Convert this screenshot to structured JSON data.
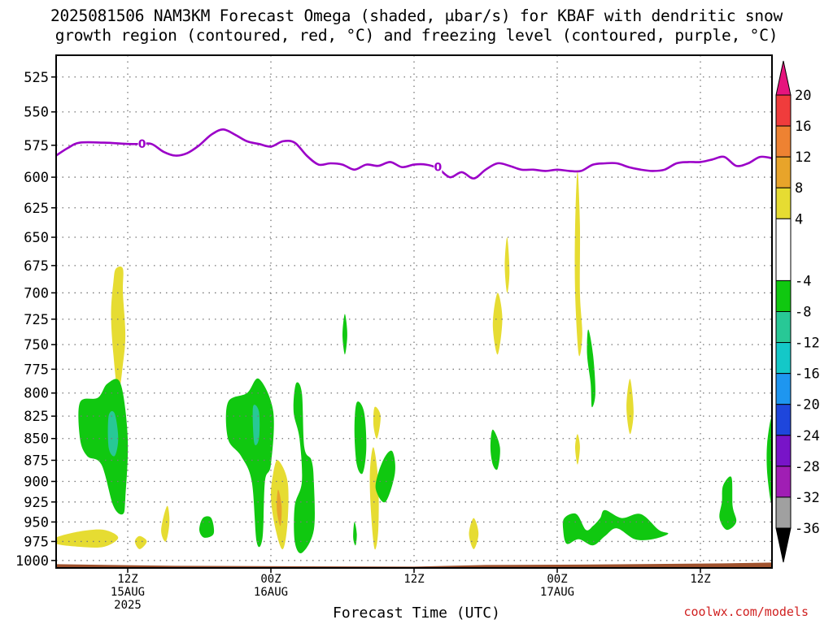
{
  "title_line1": "2025081506 NAM3KM Forecast Omega (shaded, μbar/s) for KBAF with dendritic snow",
  "title_line2": "growth region (contoured, red, °C) and freezing level (contoured, purple, °C)",
  "xlabel": "Forecast Time (UTC)",
  "credit": "coolwx.com/models",
  "colors": {
    "freezing_line": "#9b00c8",
    "terrain": "#a0522d",
    "grid": "#777777"
  },
  "chart_data": {
    "type": "heatmap",
    "y_axis": {
      "label": "",
      "ticks": [
        525,
        550,
        575,
        600,
        625,
        650,
        675,
        700,
        725,
        750,
        775,
        800,
        825,
        850,
        875,
        900,
        925,
        950,
        975,
        1000
      ],
      "range": [
        510,
        1010
      ],
      "scale": "log-pressure"
    },
    "x_axis": {
      "range_hours": [
        6,
        66
      ],
      "ticks": [
        {
          "hour": 12,
          "lines": [
            "12Z",
            "15AUG",
            "2025"
          ]
        },
        {
          "hour": 24,
          "lines": [
            "00Z",
            "16AUG"
          ]
        },
        {
          "hour": 36,
          "lines": [
            "12Z"
          ]
        },
        {
          "hour": 48,
          "lines": [
            "00Z",
            "17AUG"
          ]
        },
        {
          "hour": 60,
          "lines": [
            "12Z"
          ]
        }
      ]
    },
    "freezing_level": {
      "contour_label": "0",
      "label_positions": [
        [
          13.2,
          574
        ],
        [
          38.0,
          592
        ]
      ],
      "points": [
        [
          6,
          583
        ],
        [
          7,
          577
        ],
        [
          8,
          573
        ],
        [
          10,
          573
        ],
        [
          12,
          574
        ],
        [
          13,
          574
        ],
        [
          14,
          574
        ],
        [
          15,
          580
        ],
        [
          16,
          583
        ],
        [
          17,
          581
        ],
        [
          18,
          575
        ],
        [
          19,
          567
        ],
        [
          20,
          563
        ],
        [
          21,
          567
        ],
        [
          22,
          572
        ],
        [
          23,
          574
        ],
        [
          24,
          576
        ],
        [
          25,
          572
        ],
        [
          26,
          573
        ],
        [
          27,
          583
        ],
        [
          28,
          590
        ],
        [
          29,
          589
        ],
        [
          30,
          590
        ],
        [
          31,
          594
        ],
        [
          32,
          590
        ],
        [
          33,
          591
        ],
        [
          34,
          588
        ],
        [
          35,
          592
        ],
        [
          36,
          590
        ],
        [
          37,
          590
        ],
        [
          38,
          593
        ],
        [
          39,
          600
        ],
        [
          40,
          596
        ],
        [
          41,
          601
        ],
        [
          42,
          594
        ],
        [
          43,
          589
        ],
        [
          44,
          591
        ],
        [
          45,
          594
        ],
        [
          46,
          594
        ],
        [
          47,
          595
        ],
        [
          48,
          594
        ],
        [
          49,
          595
        ],
        [
          50,
          595
        ],
        [
          51,
          590
        ],
        [
          52,
          589
        ],
        [
          53,
          589
        ],
        [
          54,
          592
        ],
        [
          55,
          594
        ],
        [
          56,
          595
        ],
        [
          57,
          594
        ],
        [
          58,
          589
        ],
        [
          59,
          588
        ],
        [
          60,
          588
        ],
        [
          61,
          586
        ],
        [
          62,
          584
        ],
        [
          63,
          591
        ],
        [
          64,
          589
        ],
        [
          65,
          584
        ],
        [
          66,
          585
        ]
      ]
    },
    "terrain_top_hp": 1005,
    "omega_regions": [
      {
        "level": "4 to 8",
        "color": "#e6dc32",
        "shape": [
          [
            11,
            678
          ],
          [
            11.6,
            678
          ],
          [
            11.6,
            700
          ],
          [
            11.8,
            740
          ],
          [
            11.6,
            770
          ],
          [
            11.2,
            800
          ],
          [
            10.8,
            760
          ],
          [
            10.6,
            720
          ],
          [
            10.8,
            690
          ]
        ]
      },
      {
        "level": "4 to 8",
        "color": "#e6dc32",
        "shape": [
          [
            6,
            970
          ],
          [
            8,
            962
          ],
          [
            10,
            960
          ],
          [
            11.2,
            970
          ],
          [
            10,
            982
          ],
          [
            8,
            982
          ],
          [
            6,
            978
          ]
        ]
      },
      {
        "level": "4 to 8",
        "color": "#e6dc32",
        "shape": [
          [
            13,
            968
          ],
          [
            13.6,
            975
          ],
          [
            13,
            985
          ],
          [
            12.6,
            975
          ]
        ]
      },
      {
        "level": "4 to 8",
        "color": "#e6dc32",
        "shape": [
          [
            15.3,
            930
          ],
          [
            15.5,
            950
          ],
          [
            15.2,
            975
          ],
          [
            14.8,
            960
          ]
        ]
      },
      {
        "level": "4 to 8",
        "color": "#e6dc32",
        "shape": [
          [
            24.6,
            875
          ],
          [
            25.4,
            900
          ],
          [
            25.4,
            950
          ],
          [
            25,
            985
          ],
          [
            24.4,
            960
          ],
          [
            24,
            920
          ],
          [
            24.2,
            890
          ]
        ]
      },
      {
        "level": "8 to 12",
        "color": "#e8a42a",
        "shape": [
          [
            24.6,
            910
          ],
          [
            24.9,
            930
          ],
          [
            24.8,
            955
          ],
          [
            24.5,
            935
          ]
        ]
      },
      {
        "level": "4 to 8",
        "color": "#e6dc32",
        "shape": [
          [
            32.6,
            860
          ],
          [
            33,
            900
          ],
          [
            33,
            960
          ],
          [
            32.7,
            985
          ],
          [
            32.4,
            940
          ],
          [
            32.3,
            890
          ]
        ]
      },
      {
        "level": "4 to 8",
        "color": "#e6dc32",
        "shape": [
          [
            32.7,
            815
          ],
          [
            33.2,
            825
          ],
          [
            32.9,
            850
          ],
          [
            32.6,
            835
          ]
        ]
      },
      {
        "level": "4 to 8",
        "color": "#e6dc32",
        "shape": [
          [
            41,
            945
          ],
          [
            41.4,
            965
          ],
          [
            41,
            985
          ],
          [
            40.6,
            965
          ]
        ]
      },
      {
        "level": "4 to 8",
        "color": "#e6dc32",
        "shape": [
          [
            43.8,
            650
          ],
          [
            44,
            680
          ],
          [
            43.8,
            700
          ],
          [
            43.6,
            675
          ]
        ]
      },
      {
        "level": "4 to 8",
        "color": "#e6dc32",
        "shape": [
          [
            43,
            700
          ],
          [
            43.4,
            725
          ],
          [
            43,
            760
          ],
          [
            42.6,
            730
          ]
        ]
      },
      {
        "level": "4 to 8",
        "color": "#e6dc32",
        "shape": [
          [
            49.7,
            595
          ],
          [
            49.9,
            640
          ],
          [
            49.9,
            700
          ],
          [
            50.1,
            740
          ],
          [
            49.8,
            760
          ],
          [
            49.5,
            700
          ],
          [
            49.5,
            640
          ]
        ]
      },
      {
        "level": "4 to 8",
        "color": "#e6dc32",
        "shape": [
          [
            49.7,
            845
          ],
          [
            49.9,
            860
          ],
          [
            49.7,
            880
          ],
          [
            49.5,
            860
          ]
        ]
      },
      {
        "level": "4 to 8",
        "color": "#e6dc32",
        "shape": [
          [
            54.1,
            785
          ],
          [
            54.4,
            820
          ],
          [
            54.1,
            845
          ],
          [
            53.8,
            815
          ]
        ]
      },
      {
        "level": "-8 to -4",
        "color": "#10c810",
        "shape": [
          [
            8,
            810
          ],
          [
            9.5,
            805
          ],
          [
            10.3,
            790
          ],
          [
            11.4,
            790
          ],
          [
            12,
            850
          ],
          [
            11.8,
            920
          ],
          [
            11.6,
            940
          ],
          [
            10.8,
            930
          ],
          [
            9.8,
            880
          ],
          [
            8.6,
            870
          ],
          [
            8,
            850
          ]
        ]
      },
      {
        "level": "-12 to -8",
        "color": "#28c896",
        "shape": [
          [
            10.4,
            825
          ],
          [
            10.9,
            822
          ],
          [
            11.2,
            850
          ],
          [
            10.9,
            870
          ],
          [
            10.4,
            860
          ]
        ]
      },
      {
        "level": "-8 to -4",
        "color": "#10c810",
        "shape": [
          [
            20.4,
            810
          ],
          [
            22,
            800
          ],
          [
            23,
            785
          ],
          [
            24.2,
            820
          ],
          [
            24,
            880
          ],
          [
            23.5,
            900
          ],
          [
            23.3,
            970
          ],
          [
            22.8,
            975
          ],
          [
            22.4,
            900
          ],
          [
            21.5,
            870
          ],
          [
            20.4,
            850
          ]
        ]
      },
      {
        "level": "-12 to -8",
        "color": "#28c896",
        "shape": [
          [
            22.5,
            815
          ],
          [
            23,
            820
          ],
          [
            23,
            850
          ],
          [
            22.6,
            855
          ]
        ]
      },
      {
        "level": "-8 to -4",
        "color": "#10c810",
        "shape": [
          [
            18.3,
            945
          ],
          [
            19,
            945
          ],
          [
            19.2,
            965
          ],
          [
            18.4,
            970
          ],
          [
            18,
            960
          ]
        ]
      },
      {
        "level": "-8 to -4",
        "color": "#10c810",
        "shape": [
          [
            26.1,
            790
          ],
          [
            26.6,
            800
          ],
          [
            26.8,
            860
          ],
          [
            27.4,
            875
          ],
          [
            27.6,
            900
          ],
          [
            27.6,
            960
          ],
          [
            26.6,
            990
          ],
          [
            26,
            975
          ],
          [
            26,
            930
          ],
          [
            26.6,
            900
          ],
          [
            26.4,
            850
          ],
          [
            25.9,
            820
          ]
        ]
      },
      {
        "level": "-8 to -4",
        "color": "#10c810",
        "shape": [
          [
            31.2,
            810
          ],
          [
            31.8,
            820
          ],
          [
            32,
            860
          ],
          [
            31.7,
            890
          ],
          [
            31.2,
            880
          ],
          [
            31,
            840
          ]
        ]
      },
      {
        "level": "-8 to -4",
        "color": "#10c810",
        "shape": [
          [
            30.2,
            720
          ],
          [
            30.4,
            740
          ],
          [
            30.2,
            760
          ],
          [
            30,
            740
          ]
        ]
      },
      {
        "level": "-8 to -4",
        "color": "#10c810",
        "shape": [
          [
            31,
            950
          ],
          [
            31.2,
            965
          ],
          [
            31.1,
            980
          ],
          [
            30.9,
            970
          ]
        ]
      },
      {
        "level": "-8 to -4",
        "color": "#10c810",
        "shape": [
          [
            33.6,
            870
          ],
          [
            34.2,
            865
          ],
          [
            34.4,
            890
          ],
          [
            33.6,
            925
          ],
          [
            32.8,
            910
          ],
          [
            33,
            890
          ]
        ]
      },
      {
        "level": "-8 to -4",
        "color": "#10c810",
        "shape": [
          [
            42.6,
            840
          ],
          [
            43.2,
            860
          ],
          [
            43.0,
            885
          ],
          [
            42.6,
            880
          ],
          [
            42.4,
            860
          ]
        ]
      },
      {
        "level": "-8 to -4",
        "color": "#10c810",
        "shape": [
          [
            48.6,
            945
          ],
          [
            49.6,
            940
          ],
          [
            50.4,
            960
          ],
          [
            51,
            955
          ],
          [
            51.6,
            945
          ],
          [
            52,
            935
          ],
          [
            53.4,
            945
          ],
          [
            55,
            940
          ],
          [
            56.5,
            960
          ],
          [
            57.3,
            965
          ],
          [
            56,
            972
          ],
          [
            54.5,
            972
          ],
          [
            53,
            958
          ],
          [
            52,
            968
          ],
          [
            51,
            980
          ],
          [
            49.8,
            972
          ],
          [
            48.8,
            978
          ],
          [
            48.5,
            960
          ]
        ]
      },
      {
        "level": "-8 to -4",
        "color": "#10c810",
        "shape": [
          [
            50.6,
            735
          ],
          [
            51,
            760
          ],
          [
            51.2,
            800
          ],
          [
            50.9,
            815
          ],
          [
            50.8,
            790
          ],
          [
            50.5,
            760
          ]
        ]
      },
      {
        "level": "-8 to -4",
        "color": "#10c810",
        "shape": [
          [
            61.9,
            905
          ],
          [
            62.6,
            895
          ],
          [
            62.7,
            930
          ],
          [
            63,
            950
          ],
          [
            62.2,
            960
          ],
          [
            61.6,
            945
          ],
          [
            61.8,
            925
          ]
        ]
      },
      {
        "level": "-8 to -4",
        "color": "#10c810",
        "shape": [
          [
            66,
            830
          ],
          [
            65.6,
            855
          ],
          [
            65.6,
            890
          ],
          [
            66,
            925
          ]
        ]
      }
    ],
    "colorbar": {
      "label_values": [
        20,
        16,
        12,
        8,
        4,
        -4,
        -8,
        -12,
        -16,
        -20,
        -24,
        -28,
        -32,
        -36
      ],
      "bands": [
        {
          "from": 16,
          "to": 20,
          "color": "#f03c3c"
        },
        {
          "from": 12,
          "to": 16,
          "color": "#ee8232"
        },
        {
          "from": 8,
          "to": 12,
          "color": "#e8a42a"
        },
        {
          "from": 4,
          "to": 8,
          "color": "#e6dc32"
        },
        {
          "from": -4,
          "to": 4,
          "color": "#ffffff"
        },
        {
          "from": -8,
          "to": -4,
          "color": "#10c810"
        },
        {
          "from": -12,
          "to": -8,
          "color": "#28c896"
        },
        {
          "from": -16,
          "to": -12,
          "color": "#14c8c8"
        },
        {
          "from": -20,
          "to": -16,
          "color": "#1e96f0"
        },
        {
          "from": -24,
          "to": -20,
          "color": "#1e46dc"
        },
        {
          "from": -28,
          "to": -24,
          "color": "#7814c8"
        },
        {
          "from": -32,
          "to": -28,
          "color": "#a01eb4"
        },
        {
          "from": -36,
          "to": -32,
          "color": "#a0a0a0"
        }
      ],
      "top_arrow_color": "#e6147d",
      "bottom_arrow_color": "#000000"
    }
  }
}
